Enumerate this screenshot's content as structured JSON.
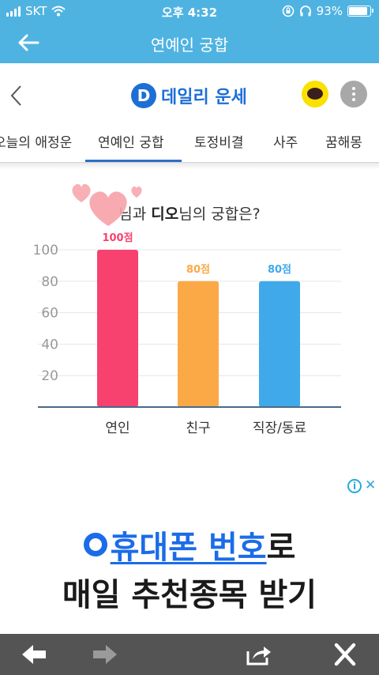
{
  "status_bar": {
    "carrier": "SKT",
    "time": "오후 4:32",
    "battery_text": "93%",
    "battery_level": 0.93
  },
  "app_bar": {
    "title": "연예인 궁합"
  },
  "site": {
    "logo_letter": "D",
    "name": "데일리 운세"
  },
  "tabs": [
    {
      "label": "오늘의 애정운"
    },
    {
      "label": "연예인 궁합",
      "active": true
    },
    {
      "label": "토정비결"
    },
    {
      "label": "사주"
    },
    {
      "label": "꿈해몽"
    }
  ],
  "question": {
    "pre": "",
    "mid": "님과 ",
    "celeb": "디오",
    "post": "님의 궁합은?"
  },
  "chart_data": {
    "type": "bar",
    "categories": [
      "연인",
      "친구",
      "직장/동료"
    ],
    "values": [
      100,
      80,
      80
    ],
    "value_labels": [
      "100점",
      "80점",
      "80점"
    ],
    "colors": [
      "#f7426f",
      "#fba947",
      "#3fa9ea"
    ],
    "yticks": [
      20,
      40,
      60,
      80,
      100
    ],
    "ylim": [
      0,
      100
    ],
    "grid": true
  },
  "ad": {
    "line1_highlight": "휴대폰 번호",
    "line1_rest": "로",
    "line2": "매일 추천종목 받기",
    "info_glyph": "i",
    "close_glyph": "✕"
  },
  "toolbar": {
    "icons": [
      "back-arrow-icon",
      "forward-arrow-icon",
      "share-icon",
      "close-icon"
    ]
  },
  "colors": {
    "app_bar": "#4fb3e1",
    "brand": "#1d6fd6",
    "toolbar": "#545454"
  }
}
